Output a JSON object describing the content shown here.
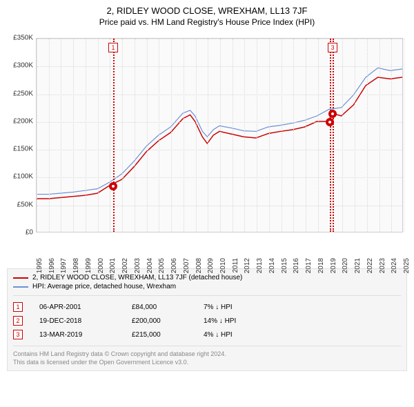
{
  "title": "2, RIDLEY WOOD CLOSE, WREXHAM, LL13 7JF",
  "subtitle": "Price paid vs. HM Land Registry's House Price Index (HPI)",
  "chart": {
    "type": "line",
    "background_color": "#fafafa",
    "grid_color": "#d8d8d8",
    "border_color": "#cccccc",
    "ylim": [
      0,
      350000
    ],
    "ytick_step": 50000,
    "yticks": [
      "£0",
      "£50K",
      "£100K",
      "£150K",
      "£200K",
      "£250K",
      "£300K",
      "£350K"
    ],
    "xlim": [
      1995,
      2025
    ],
    "xticks": [
      1995,
      1996,
      1997,
      1998,
      1999,
      2000,
      2001,
      2002,
      2003,
      2004,
      2005,
      2006,
      2007,
      2008,
      2009,
      2010,
      2011,
      2012,
      2013,
      2014,
      2015,
      2016,
      2017,
      2018,
      2019,
      2020,
      2021,
      2022,
      2023,
      2024,
      2025
    ],
    "xtick_fontsize": 10,
    "ytick_fontsize": 10,
    "series": [
      {
        "name": "price_paid",
        "label": "2, RIDLEY WOOD CLOSE, WREXHAM, LL13 7JF (detached house)",
        "color": "#cc0000",
        "line_width": 1.5,
        "data": [
          [
            1995,
            60000
          ],
          [
            1996,
            60000
          ],
          [
            1997,
            62000
          ],
          [
            1998,
            64000
          ],
          [
            1999,
            66000
          ],
          [
            2000,
            70000
          ],
          [
            2001,
            84000
          ],
          [
            2002,
            95000
          ],
          [
            2003,
            118000
          ],
          [
            2004,
            145000
          ],
          [
            2005,
            165000
          ],
          [
            2006,
            180000
          ],
          [
            2007,
            205000
          ],
          [
            2007.6,
            212000
          ],
          [
            2008,
            200000
          ],
          [
            2008.6,
            172000
          ],
          [
            2009,
            160000
          ],
          [
            2009.5,
            175000
          ],
          [
            2010,
            182000
          ],
          [
            2011,
            177000
          ],
          [
            2012,
            172000
          ],
          [
            2013,
            170000
          ],
          [
            2014,
            178000
          ],
          [
            2015,
            182000
          ],
          [
            2016,
            185000
          ],
          [
            2017,
            190000
          ],
          [
            2018,
            200000
          ],
          [
            2018.97,
            200000
          ],
          [
            2019.2,
            215000
          ],
          [
            2020,
            210000
          ],
          [
            2021,
            230000
          ],
          [
            2022,
            265000
          ],
          [
            2023,
            280000
          ],
          [
            2024,
            277000
          ],
          [
            2025,
            280000
          ]
        ]
      },
      {
        "name": "hpi",
        "label": "HPI: Average price, detached house, Wrexham",
        "color": "#6a8fd4",
        "line_width": 1.2,
        "data": [
          [
            1995,
            68000
          ],
          [
            1996,
            68000
          ],
          [
            1997,
            70000
          ],
          [
            1998,
            72000
          ],
          [
            1999,
            75000
          ],
          [
            2000,
            78000
          ],
          [
            2001,
            90000
          ],
          [
            2002,
            105000
          ],
          [
            2003,
            128000
          ],
          [
            2004,
            155000
          ],
          [
            2005,
            175000
          ],
          [
            2006,
            190000
          ],
          [
            2007,
            215000
          ],
          [
            2007.6,
            220000
          ],
          [
            2008,
            210000
          ],
          [
            2008.6,
            182000
          ],
          [
            2009,
            172000
          ],
          [
            2009.5,
            185000
          ],
          [
            2010,
            192000
          ],
          [
            2011,
            188000
          ],
          [
            2012,
            183000
          ],
          [
            2013,
            182000
          ],
          [
            2014,
            190000
          ],
          [
            2015,
            193000
          ],
          [
            2016,
            197000
          ],
          [
            2017,
            202000
          ],
          [
            2018,
            210000
          ],
          [
            2019,
            222000
          ],
          [
            2020,
            225000
          ],
          [
            2021,
            248000
          ],
          [
            2022,
            280000
          ],
          [
            2023,
            297000
          ],
          [
            2024,
            292000
          ],
          [
            2025,
            295000
          ]
        ]
      }
    ],
    "sale_markers": [
      {
        "n": "1",
        "x": 2001.26,
        "y": 84000
      },
      {
        "n": "2",
        "x": 2018.97,
        "y": 200000
      },
      {
        "n": "3",
        "x": 2019.2,
        "y": 215000
      }
    ],
    "marker_color": "#cc0000",
    "marker_dot_outer": 12,
    "marker_dot_inner": 4,
    "top_markers_visible": [
      "1",
      "3"
    ]
  },
  "legend": {
    "items": [
      {
        "color": "#cc0000",
        "label": "2, RIDLEY WOOD CLOSE, WREXHAM, LL13 7JF (detached house)"
      },
      {
        "color": "#6a8fd4",
        "label": "HPI: Average price, detached house, Wrexham"
      }
    ]
  },
  "sales": [
    {
      "n": "1",
      "date": "06-APR-2001",
      "price": "£84,000",
      "diff": "7% ↓ HPI"
    },
    {
      "n": "2",
      "date": "19-DEC-2018",
      "price": "£200,000",
      "diff": "14% ↓ HPI"
    },
    {
      "n": "3",
      "date": "13-MAR-2019",
      "price": "£215,000",
      "diff": "4% ↓ HPI"
    }
  ],
  "footnote": {
    "line1": "Contains HM Land Registry data © Crown copyright and database right 2024.",
    "line2": "This data is licensed under the Open Government Licence v3.0."
  }
}
